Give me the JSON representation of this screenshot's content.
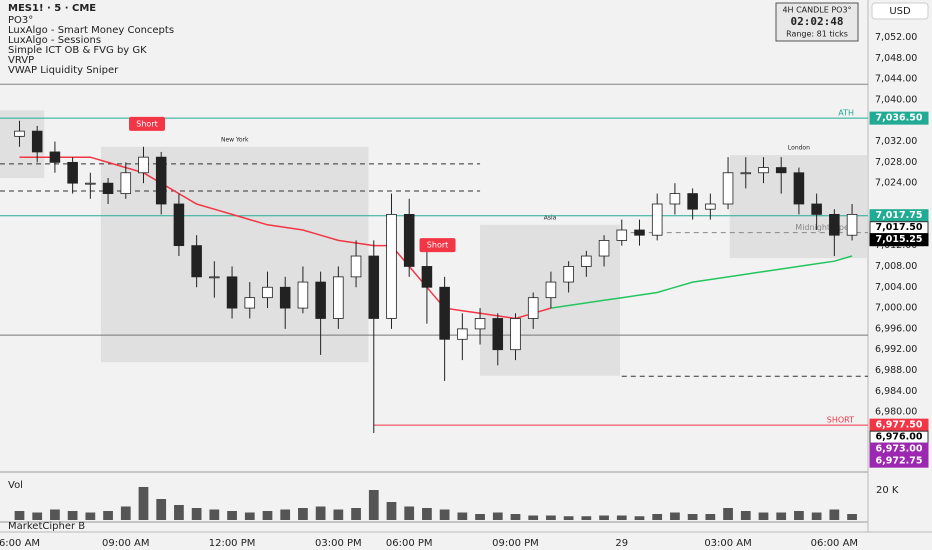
{
  "chart_data": {
    "type": "candlestick",
    "title": "MES1! · 5 · CME",
    "indicators": [
      "PO3°",
      "LuxAlgo - Smart Money Concepts",
      "LuxAlgo - Sessions",
      "Simple ICT OB & FVG by GK",
      "VRVP",
      "VWAP Liquidity Sniper"
    ],
    "currency": "USD",
    "info_box": {
      "title": "4H CANDLE PO3°",
      "timer": "02:02:48",
      "range": "Range: 81 ticks"
    },
    "open": [
      7033,
      7034,
      7030,
      7028,
      7024,
      7024,
      7022,
      7026,
      7029,
      7020,
      7012,
      7006,
      7006,
      7000,
      7002,
      7004,
      7000,
      7005,
      6998,
      7006,
      7010,
      6998,
      7018,
      7008,
      7004,
      6994,
      6996,
      6998,
      6992,
      6998,
      7002,
      7005,
      7008,
      7010,
      7013,
      7015,
      7014,
      7020,
      7022,
      7019,
      7020,
      7026,
      7026,
      7027,
      7026,
      7020,
      7018,
      7014
    ],
    "high": [
      7036,
      7035,
      7032,
      7029,
      7026,
      7025,
      7028,
      7031,
      7030,
      7022,
      7014,
      7009,
      7008,
      7005,
      7007,
      7006,
      7008,
      7007,
      7008,
      7013,
      7013,
      7022,
      7021,
      7011,
      7006,
      6999,
      7000,
      6999,
      6999,
      7003,
      7007,
      7009,
      7011,
      7014,
      7017,
      7017,
      7022,
      7024,
      7023,
      7022,
      7029,
      7029,
      7029,
      7029,
      7027,
      7022,
      7019,
      7020
    ],
    "low": [
      7031,
      7028,
      7026,
      7022,
      7021,
      7020,
      7021,
      7024,
      7018,
      7010,
      7004,
      7002,
      6998,
      6998,
      7000,
      6996,
      6999,
      6991,
      6996,
      7004,
      6976,
      6996,
      7006,
      6997,
      6986,
      6990,
      6993,
      6989,
      6990,
      6996,
      7000,
      7003,
      7006,
      7008,
      7012,
      7012,
      7013,
      7018,
      7017,
      7017,
      7019,
      7023,
      7024,
      7022,
      7018,
      7015,
      7010,
      7013
    ],
    "close": [
      7034,
      7030,
      7028,
      7024,
      7024,
      7022,
      7026,
      7029,
      7020,
      7012,
      7006,
      7006,
      7000,
      7002,
      7004,
      7000,
      7005,
      6998,
      7006,
      7010,
      6998,
      7018,
      7008,
      7004,
      6994,
      6996,
      6998,
      6992,
      6998,
      7002,
      7005,
      7008,
      7010,
      7013,
      7015,
      7014,
      7020,
      7022,
      7019,
      7020,
      7026,
      7026,
      7027,
      7026,
      7020,
      7018,
      7014,
      7018
    ],
    "up_color": "#ffffff",
    "down_color": "#222222",
    "overlays": [
      {
        "color": "#f23645",
        "values": [
          7029,
          7029,
          7029,
          7029,
          7029,
          7028,
          7027,
          7026,
          7024,
          7022,
          7020,
          7019,
          7018,
          7017,
          7016,
          7015.5,
          7015,
          7014,
          7013,
          7012.5,
          7012,
          7012,
          7008,
          7004,
          7000,
          6999.5,
          6999,
          6998.5,
          6998,
          6999,
          7000,
          null,
          null,
          null,
          null,
          null,
          null,
          null,
          null,
          null,
          null,
          null,
          null,
          null,
          null,
          null,
          null,
          null
        ]
      },
      {
        "color": "#22c55e",
        "values": [
          null,
          null,
          null,
          null,
          null,
          null,
          null,
          null,
          null,
          null,
          null,
          null,
          null,
          null,
          null,
          null,
          null,
          null,
          null,
          null,
          null,
          null,
          null,
          null,
          null,
          null,
          null,
          null,
          null,
          null,
          7000,
          7000.5,
          7001,
          7001.5,
          7002,
          7002.5,
          7003,
          7004,
          7005,
          7005.5,
          7006,
          7006.5,
          7007,
          7007.5,
          7008,
          7008.5,
          7009,
          7010
        ]
      }
    ],
    "sessions": [
      {
        "x0": -1.1,
        "x1": 1.4,
        "high": 7038,
        "low": 7025
      },
      {
        "name": "New York",
        "x0": 4.6,
        "x1": 19.7,
        "high": 7031,
        "low": 6989.6
      },
      {
        "name": "Asia",
        "x0": 26,
        "x1": 33.9,
        "high": 7016,
        "low": 6987
      },
      {
        "name": "London",
        "x0": 40.1,
        "x1": 47.9,
        "high": 7029.4,
        "low": 7009.6
      }
    ],
    "levels": [
      {
        "value": 7043,
        "color": "#888888",
        "line": "solid",
        "x0": -1.1
      },
      {
        "value": 7036.5,
        "text": "ATH",
        "price_label": "7,036.50",
        "color": "#22ab94",
        "line": "solid",
        "x0": -1.1
      },
      {
        "value": 7027.7,
        "color": "#333333",
        "line": "dashed",
        "x0": -1.1,
        "x1": 26
      },
      {
        "value": 7022.5,
        "color": "#333333",
        "line": "dashed",
        "x0": -1.1,
        "x1": 26
      },
      {
        "value": 7017.75,
        "price_label": "7,017.75",
        "color": "#22ab94",
        "line": "solid",
        "x0": -1.1
      },
      {
        "value": 7017.5,
        "price_label": "7,017.50",
        "color": "#ffffff"
      },
      {
        "value": 7015.25,
        "price_label": "7,015.25",
        "color": "#000000"
      },
      {
        "value": 7014.5,
        "text": "Midnight Open",
        "color": "#888888",
        "line": "dashed",
        "x0": 34,
        "x1": 47.9
      },
      {
        "value": 6994.8,
        "color": "#777777",
        "line": "solid",
        "x0": -1.1
      },
      {
        "value": 6986.9,
        "color": "#333333",
        "line": "dashed",
        "x0": 34,
        "x1": 47.9
      },
      {
        "value": 6977.5,
        "text": "SHORT",
        "price_label": "6,977.50",
        "color": "#f23645",
        "line": "solid",
        "x0": 20
      },
      {
        "value": 6976,
        "price_label": "6,976.00",
        "color": "#ffffff"
      },
      {
        "value": 6973,
        "price_label": "6,973.00",
        "color": "#9c27b0"
      },
      {
        "value": 6972.75,
        "price_label": "6,972.75",
        "color": "#9c27b0"
      }
    ],
    "annotations": [
      {
        "text": "Short",
        "x": 7.2,
        "y": 7035.2
      },
      {
        "text": "Short",
        "x": 23.6,
        "y": 7011.9
      }
    ],
    "ylim": [
      6968.5,
      7059.2
    ],
    "yticks": [
      {
        "value": 7052,
        "label": "7,052.00"
      },
      {
        "value": 7048,
        "label": "7,048.00"
      },
      {
        "value": 7044,
        "label": "7,044.00"
      },
      {
        "value": 7040,
        "label": "7,040.00"
      },
      {
        "value": 7032,
        "label": "7,032.00"
      },
      {
        "value": 7028,
        "label": "7,028.00"
      },
      {
        "value": 7024,
        "label": "7,024.00"
      },
      {
        "value": 7012,
        "label": "7,012.00"
      },
      {
        "value": 7008,
        "label": "7,008.00"
      },
      {
        "value": 7004,
        "label": "7,004.00"
      },
      {
        "value": 7000,
        "label": "7,000.00"
      },
      {
        "value": 6996,
        "label": "6,996.00"
      },
      {
        "value": 6992,
        "label": "6,992.00"
      },
      {
        "value": 6988,
        "label": "6,988.00"
      },
      {
        "value": 6984,
        "label": "6,984.00"
      },
      {
        "value": 6980,
        "label": "6,980.00"
      }
    ],
    "xlim": [
      -1.1,
      47.9
    ],
    "xticks": [
      {
        "value": 0,
        "label": "6:00 AM"
      },
      {
        "value": 6,
        "label": "09:00 AM"
      },
      {
        "value": 12,
        "label": "12:00 PM"
      },
      {
        "value": 18,
        "label": "03:00 PM"
      },
      {
        "value": 22,
        "label": "06:00 PM"
      },
      {
        "value": 28,
        "label": "09:00 PM"
      },
      {
        "value": 34,
        "label": "29"
      },
      {
        "value": 40,
        "label": "03:00 AM"
      },
      {
        "value": 46,
        "label": "06:00 AM"
      }
    ],
    "grid": false,
    "volume": {
      "label": "Vol",
      "values": [
        6000,
        5000,
        7000,
        6000,
        5000,
        6000,
        9000,
        22000,
        14000,
        10000,
        8000,
        7000,
        6000,
        5000,
        6000,
        7000,
        8000,
        9000,
        7000,
        8000,
        20000,
        12000,
        9000,
        8000,
        7000,
        5000,
        4000,
        5000,
        4000,
        3000,
        3000,
        2500,
        2500,
        3000,
        3000,
        2500,
        4000,
        5000,
        4000,
        4000,
        8000,
        6000,
        5000,
        5000,
        6000,
        5000,
        7000,
        4000
      ],
      "ylim": [
        0,
        28000
      ],
      "yticks": [
        {
          "value": 20000,
          "label": "20 K"
        }
      ],
      "color": "#555555"
    },
    "lower_pane": "MarketCipher B"
  }
}
